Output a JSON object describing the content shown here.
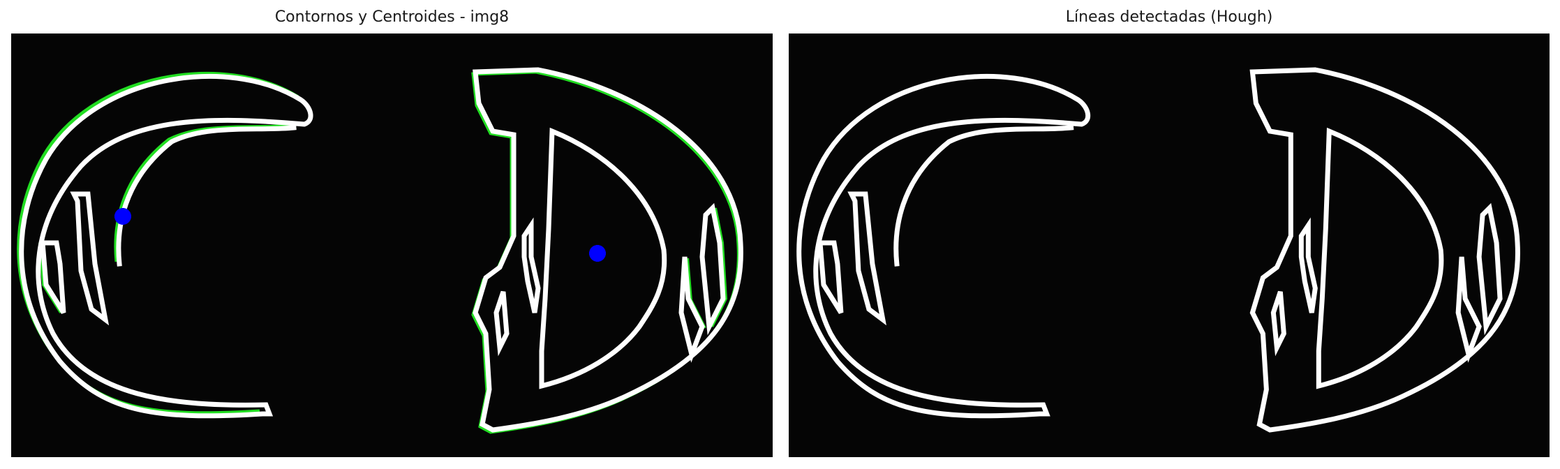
{
  "figure": {
    "panels": [
      {
        "title": "Contornos y Centroides - img8"
      },
      {
        "title": "Líneas detectadas (Hough)"
      }
    ]
  },
  "colors": {
    "background": "#050505",
    "edges": "#ffffff",
    "contours": "#22dd22",
    "centroids": "#0000ff"
  }
}
